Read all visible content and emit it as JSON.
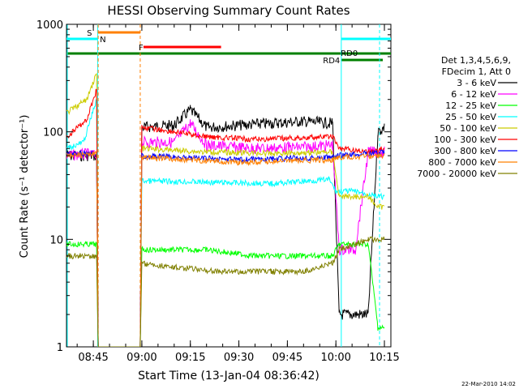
{
  "chart_data": {
    "type": "line",
    "title": "HESSI Observing Summary Count Rates",
    "xlabel": "Start Time (13-Jan-04 08:36:42)",
    "ylabel": "Count Rate (s⁻¹ detector⁻¹)",
    "yscale": "log",
    "ylim": [
      1,
      1000
    ],
    "xlim": [
      "08:36:42",
      "10:17:00"
    ],
    "grid": false,
    "legend_placement": "right",
    "x_ticks": [
      "08:45",
      "09:00",
      "09:15",
      "09:30",
      "09:45",
      "10:00",
      "10:15"
    ],
    "y_ticks": [
      "1",
      "10",
      "100",
      "1000"
    ],
    "legend_header": [
      "Det 1,3,4,5,6,9,",
      "FDecim 1, Att 0"
    ],
    "series": [
      {
        "name": "3 - 6 keV",
        "color": "#000000",
        "points": [
          [
            "08:36:42",
            60
          ],
          [
            "08:43:00",
            60
          ],
          [
            "08:46:00",
            60
          ],
          [
            "08:46:30",
            1
          ],
          [
            "08:59:30",
            1
          ],
          [
            "09:00:00",
            110
          ],
          [
            "09:10:00",
            115
          ],
          [
            "09:15:00",
            160
          ],
          [
            "09:20:00",
            110
          ],
          [
            "09:40:00",
            120
          ],
          [
            "09:50:00",
            125
          ],
          [
            "09:59:00",
            120
          ],
          [
            "10:01:00",
            2
          ],
          [
            "10:10:00",
            2
          ],
          [
            "10:13:00",
            100
          ],
          [
            "10:15:00",
            110
          ]
        ]
      },
      {
        "name": "6 - 12 keV",
        "color": "#ff00ff",
        "points": [
          [
            "08:36:42",
            60
          ],
          [
            "08:43:00",
            62
          ],
          [
            "08:46:00",
            60
          ],
          [
            "08:46:30",
            1
          ],
          [
            "08:59:30",
            1
          ],
          [
            "09:00:00",
            80
          ],
          [
            "09:10:00",
            80
          ],
          [
            "09:15:00",
            120
          ],
          [
            "09:20:00",
            75
          ],
          [
            "09:35:00",
            70
          ],
          [
            "09:50:00",
            72
          ],
          [
            "09:59:00",
            75
          ],
          [
            "10:01:00",
            8
          ],
          [
            "10:06:00",
            8
          ],
          [
            "10:10:00",
            65
          ],
          [
            "10:15:00",
            65
          ]
        ]
      },
      {
        "name": "12 - 25 keV",
        "color": "#00ff00",
        "points": [
          [
            "08:36:42",
            9
          ],
          [
            "08:46:00",
            9
          ],
          [
            "08:46:30",
            1
          ],
          [
            "08:59:30",
            1
          ],
          [
            "09:00:00",
            8
          ],
          [
            "09:20:00",
            8
          ],
          [
            "09:35:00",
            7
          ],
          [
            "09:50:00",
            7
          ],
          [
            "09:59:00",
            7
          ],
          [
            "10:01:00",
            9
          ],
          [
            "10:10:00",
            9
          ],
          [
            "10:13:00",
            1.5
          ],
          [
            "10:15:00",
            1.5
          ]
        ]
      },
      {
        "name": "25 - 50 keV",
        "color": "#00ffff",
        "points": [
          [
            "08:36:42",
            70
          ],
          [
            "08:42:00",
            80
          ],
          [
            "08:46:00",
            200
          ],
          [
            "08:46:30",
            1
          ],
          [
            "08:59:30",
            1
          ],
          [
            "09:00:00",
            35
          ],
          [
            "09:20:00",
            34
          ],
          [
            "09:40:00",
            33
          ],
          [
            "09:58:00",
            36
          ],
          [
            "10:00:00",
            28
          ],
          [
            "10:06:00",
            28
          ],
          [
            "10:13:00",
            25
          ],
          [
            "10:15:00",
            25
          ]
        ]
      },
      {
        "name": "50 - 100 keV",
        "color": "#cccc00",
        "points": [
          [
            "08:36:42",
            150
          ],
          [
            "08:43:00",
            200
          ],
          [
            "08:46:00",
            350
          ],
          [
            "08:46:30",
            1
          ],
          [
            "08:59:30",
            1
          ],
          [
            "09:00:00",
            70
          ],
          [
            "09:20:00",
            65
          ],
          [
            "09:40:00",
            63
          ],
          [
            "09:59:00",
            65
          ],
          [
            "10:01:00",
            25
          ],
          [
            "10:10:00",
            25
          ],
          [
            "10:13:00",
            20
          ],
          [
            "10:15:00",
            20
          ]
        ]
      },
      {
        "name": "100 - 300 keV",
        "color": "#ff0000",
        "points": [
          [
            "08:36:42",
            90
          ],
          [
            "08:43:00",
            130
          ],
          [
            "08:46:00",
            250
          ],
          [
            "08:46:30",
            1
          ],
          [
            "08:59:30",
            1
          ],
          [
            "09:00:00",
            110
          ],
          [
            "09:10:00",
            100
          ],
          [
            "09:20:00",
            90
          ],
          [
            "09:35:00",
            85
          ],
          [
            "09:59:00",
            90
          ],
          [
            "10:01:00",
            70
          ],
          [
            "10:10:00",
            65
          ],
          [
            "10:15:00",
            70
          ]
        ]
      },
      {
        "name": "300 - 800 keV",
        "color": "#0000ff",
        "points": [
          [
            "08:36:42",
            62
          ],
          [
            "08:46:00",
            64
          ],
          [
            "08:46:30",
            1
          ],
          [
            "08:59:30",
            1
          ],
          [
            "09:00:00",
            60
          ],
          [
            "09:30:00",
            55
          ],
          [
            "09:59:00",
            58
          ],
          [
            "10:01:00",
            60
          ],
          [
            "10:15:00",
            65
          ]
        ]
      },
      {
        "name": "800 - 7000 keV",
        "color": "#ff8000",
        "points": [
          [
            "08:36:42",
            60
          ],
          [
            "08:46:00",
            62
          ],
          [
            "08:46:30",
            1
          ],
          [
            "08:59:30",
            1
          ],
          [
            "09:00:00",
            58
          ],
          [
            "09:30:00",
            52
          ],
          [
            "09:59:00",
            55
          ],
          [
            "10:01:00",
            58
          ],
          [
            "10:15:00",
            60
          ]
        ]
      },
      {
        "name": "7000 - 20000 keV",
        "color": "#808000",
        "points": [
          [
            "08:36:42",
            7
          ],
          [
            "08:46:00",
            7
          ],
          [
            "08:46:30",
            1
          ],
          [
            "08:59:30",
            1
          ],
          [
            "09:00:00",
            6
          ],
          [
            "09:10:00",
            5.5
          ],
          [
            "09:25:00",
            5
          ],
          [
            "09:40:00",
            5
          ],
          [
            "09:50:00",
            5
          ],
          [
            "09:59:00",
            6
          ],
          [
            "10:01:00",
            8
          ],
          [
            "10:10:00",
            10
          ],
          [
            "10:15:00",
            10
          ]
        ]
      }
    ],
    "flag_labels": {
      "S": "S",
      "N": "N",
      "F": "F",
      "RD0": "RD0",
      "RD4": "RD4"
    },
    "timestamp": "22-Mar-2010 14:02"
  }
}
